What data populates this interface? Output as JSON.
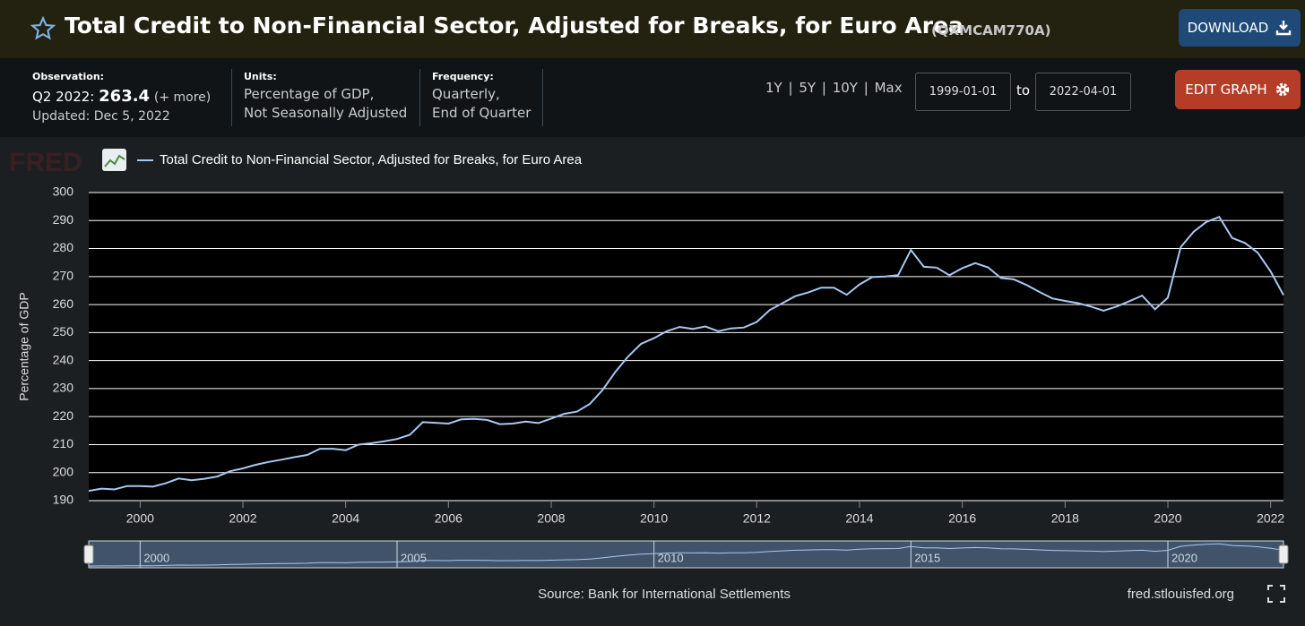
{
  "header": {
    "title": "Total Credit to Non-Financial Sector, Adjusted for Breaks, for Euro Area",
    "series_id": "(QXMCAM770A)",
    "download": "DOWNLOAD"
  },
  "info": {
    "observation_label": "Observation:",
    "observation_period": "Q2 2022:",
    "observation_value": 263.4,
    "more": "(+ more)",
    "updated": "Updated: Dec 5, 2022",
    "units_label": "Units:",
    "units_lines": [
      "Percentage of GDP,",
      "Not Seasonally Adjusted"
    ],
    "frequency_label": "Frequency:",
    "frequency_lines": [
      "Quarterly,",
      "End of Quarter"
    ]
  },
  "controls": {
    "ranges": [
      "1Y",
      "5Y",
      "10Y",
      "Max"
    ],
    "separator": "|",
    "start_date": "1999-01-01",
    "to": "to",
    "end_date": "2022-04-01",
    "edit_graph": "EDIT GRAPH"
  },
  "logo": "FRED",
  "chart_data": {
    "type": "line",
    "ylabel": "Percentage of GDP",
    "x": [
      1999,
      1999.25,
      1999.5,
      1999.75,
      2000,
      2000.25,
      2000.5,
      2000.75,
      2001,
      2001.25,
      2001.5,
      2001.75,
      2002,
      2002.25,
      2002.5,
      2002.75,
      2003,
      2003.25,
      2003.5,
      2003.75,
      2004,
      2004.25,
      2004.5,
      2004.75,
      2005,
      2005.25,
      2005.5,
      2005.75,
      2006,
      2006.25,
      2006.5,
      2006.75,
      2007,
      2007.25,
      2007.5,
      2007.75,
      2008,
      2008.25,
      2008.5,
      2008.75,
      2009,
      2009.25,
      2009.5,
      2009.75,
      2010,
      2010.25,
      2010.5,
      2010.75,
      2011,
      2011.25,
      2011.5,
      2011.75,
      2012,
      2012.25,
      2012.5,
      2012.75,
      2013,
      2013.25,
      2013.5,
      2013.75,
      2014,
      2014.25,
      2014.5,
      2014.75,
      2015,
      2015.25,
      2015.5,
      2015.75,
      2016,
      2016.25,
      2016.5,
      2016.75,
      2017,
      2017.25,
      2017.5,
      2017.75,
      2018,
      2018.25,
      2018.5,
      2018.75,
      2019,
      2019.25,
      2019.5,
      2019.75,
      2020,
      2020.25,
      2020.5,
      2020.75,
      2021,
      2021.25,
      2021.5,
      2021.75,
      2022,
      2022.25
    ],
    "series": [
      {
        "name": "Total Credit to Non-Financial Sector, Adjusted for Breaks, for Euro Area",
        "color": "#a8c8f0",
        "values": [
          193.5,
          194.3,
          194.0,
          195.2,
          195.2,
          195.0,
          196.2,
          197.9,
          197.3,
          197.8,
          198.6,
          200.5,
          201.5,
          202.8,
          203.8,
          204.6,
          205.5,
          206.3,
          208.5,
          208.5,
          208.0,
          210.0,
          210.5,
          211.2,
          212.0,
          213.5,
          218.0,
          217.8,
          217.5,
          219.0,
          219.2,
          218.8,
          217.3,
          217.5,
          218.2,
          217.7,
          219.3,
          221.0,
          221.8,
          224.5,
          229.5,
          236.0,
          241.5,
          246.0,
          248.0,
          250.5,
          252.0,
          251.3,
          252.2,
          250.5,
          251.5,
          251.8,
          253.8,
          258.0,
          260.5,
          263.0,
          264.3,
          266.0,
          266.0,
          263.5,
          267.2,
          269.8,
          270.0,
          270.5,
          279.5,
          273.5,
          273.2,
          270.5,
          273.0,
          274.8,
          273.3,
          269.5,
          269.0,
          267.0,
          264.5,
          262.2,
          261.3,
          260.5,
          259.3,
          257.8,
          259.3,
          261.2,
          263.2,
          258.3,
          262.5,
          280.5,
          286.0,
          289.5,
          291.3,
          283.8,
          282.0,
          278.5,
          271.8,
          263.4
        ]
      }
    ],
    "xlim": [
      1999,
      2022.25
    ],
    "xticks": [
      2000,
      2002,
      2004,
      2006,
      2008,
      2010,
      2012,
      2014,
      2016,
      2018,
      2020,
      2022
    ],
    "ylim": [
      190,
      300
    ],
    "yticks": [
      190,
      200,
      210,
      220,
      230,
      240,
      250,
      260,
      270,
      280,
      290,
      300
    ],
    "grid": true,
    "navigator_xticks": [
      2000,
      2005,
      2010,
      2015,
      2020
    ],
    "source": "Source: Bank for International Settlements",
    "site": "fred.stlouisfed.org"
  }
}
